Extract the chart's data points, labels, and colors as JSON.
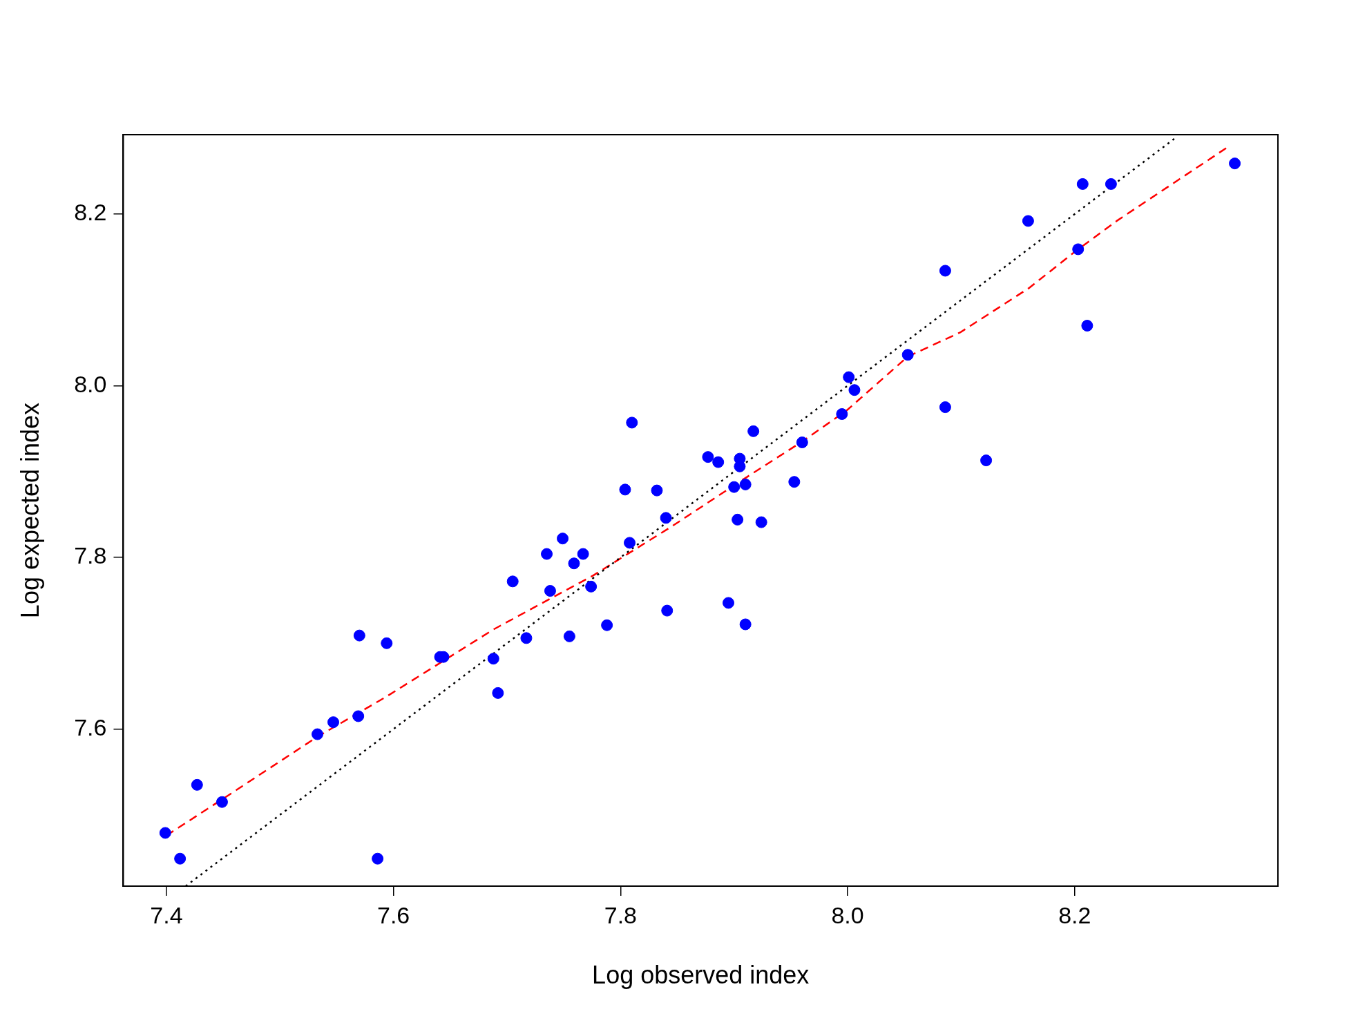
{
  "chart_data": {
    "type": "scatter",
    "xlabel": "Log observed index",
    "ylabel": "Log expected index",
    "xlim": [
      7.362,
      8.379
    ],
    "ylim": [
      7.417,
      8.2925
    ],
    "xticks": [
      7.4,
      7.6,
      7.8,
      {
        "value": 8,
        "label": "8.0"
      },
      8.2
    ],
    "yticks": [
      7.6,
      7.8,
      {
        "value": 8,
        "label": "8.0"
      },
      8.2
    ],
    "grid": false,
    "legend": false,
    "series": [
      {
        "type": "scatter",
        "color": "#0000ff",
        "marker": "circle",
        "x": [
          7.399,
          7.412,
          7.427,
          7.449,
          7.533,
          7.547,
          7.569,
          7.57,
          7.586,
          7.594,
          7.641,
          7.644,
          7.688,
          7.692,
          7.705,
          7.717,
          7.735,
          7.738,
          7.749,
          7.755,
          7.759,
          7.767,
          7.774,
          7.788,
          7.804,
          7.808,
          7.81,
          7.832,
          7.84,
          7.841,
          7.877,
          7.886,
          7.895,
          7.9,
          7.903,
          7.905,
          7.905,
          7.91,
          7.91,
          7.917,
          7.924,
          7.953,
          7.96,
          7.995,
          8.001,
          8.006,
          8.053,
          8.086,
          8.086,
          8.122,
          8.159,
          8.203,
          8.207,
          8.211,
          8.232,
          8.341
        ],
        "values": [
          7.479,
          7.449,
          7.535,
          7.515,
          7.594,
          7.608,
          7.615,
          7.709,
          7.449,
          7.7,
          7.684,
          7.684,
          7.682,
          7.642,
          7.772,
          7.706,
          7.804,
          7.761,
          7.822,
          7.708,
          7.793,
          7.804,
          7.766,
          7.721,
          7.879,
          7.817,
          7.957,
          7.878,
          7.846,
          7.738,
          7.917,
          7.911,
          7.747,
          7.882,
          7.844,
          7.915,
          7.906,
          7.885,
          7.722,
          7.947,
          7.841,
          7.888,
          7.934,
          7.967,
          8.01,
          7.995,
          8.036,
          8.134,
          7.975,
          7.913,
          8.192,
          8.159,
          8.235,
          8.07,
          8.235,
          8.259
        ]
      },
      {
        "type": "line",
        "color": "#000000",
        "line_style": "dotted",
        "marker": "none",
        "x": [
          7.417,
          8.29
        ],
        "values": [
          7.417,
          8.29
        ]
      },
      {
        "type": "line",
        "color": "#ff0000",
        "line_style": "dashed",
        "marker": "none",
        "x": [
          7.4,
          7.449,
          7.533,
          7.594,
          7.688,
          7.776,
          7.845,
          7.907,
          7.96,
          7.999,
          8.053,
          8.099,
          8.16,
          8.2,
          8.237,
          8.337
        ],
        "values": [
          7.476,
          7.518,
          7.591,
          7.638,
          7.716,
          7.779,
          7.836,
          7.89,
          7.935,
          7.971,
          8.034,
          8.062,
          8.114,
          8.156,
          8.192,
          8.28
        ]
      }
    ]
  }
}
